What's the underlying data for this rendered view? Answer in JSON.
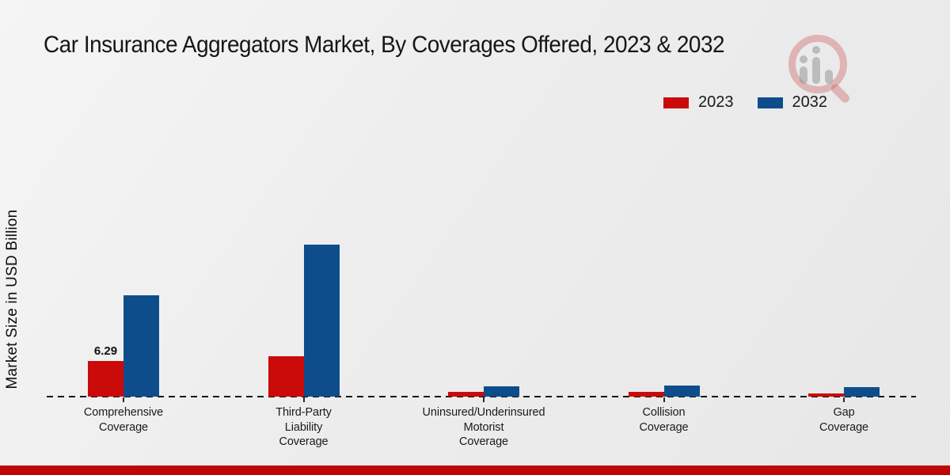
{
  "title": "Car Insurance Aggregators Market, By Coverages Offered, 2023 & 2032",
  "y_axis_label": "Market Size in USD Billion",
  "legend": {
    "items": [
      {
        "label": "2023",
        "color": "#cb0a0a"
      },
      {
        "label": "2032",
        "color": "#0e4d8c"
      }
    ]
  },
  "colors": {
    "series_2023": "#cb0a0a",
    "series_2032": "#0e4d8c",
    "footer_strip": "#c00606",
    "baseline": "#151515",
    "background": "#ededed",
    "watermark_red": "#cb5c5c",
    "watermark_gray": "#96969b"
  },
  "chart_data": {
    "type": "bar",
    "title": "Car Insurance Aggregators Market, By Coverages Offered, 2023 & 2032",
    "xlabel": "",
    "ylabel": "Market Size in USD Billion",
    "grid": false,
    "legend_position": "top-right",
    "baseline_value": 0,
    "categories": [
      {
        "name": "Comprehensive Coverage",
        "lines": [
          "Comprehensive",
          "Coverage"
        ]
      },
      {
        "name": "Third-Party Liability Coverage",
        "lines": [
          "Third-Party",
          "Liability",
          "Coverage"
        ]
      },
      {
        "name": "Uninsured/Underinsured Motorist Coverage",
        "lines": [
          "Uninsured/Underinsured",
          "Motorist",
          "Coverage"
        ]
      },
      {
        "name": "Collision Coverage",
        "lines": [
          "Collision",
          "Coverage"
        ]
      },
      {
        "name": "Gap Coverage",
        "lines": [
          "Gap",
          "Coverage"
        ]
      }
    ],
    "series": [
      {
        "name": "2023",
        "color": "#cb0a0a",
        "values": [
          6.29,
          7.1,
          0.8,
          0.9,
          0.6
        ]
      },
      {
        "name": "2032",
        "color": "#0e4d8c",
        "values": [
          17.9,
          26.8,
          1.8,
          2.0,
          1.7
        ]
      }
    ],
    "value_labels": [
      {
        "series_index": 0,
        "category_index": 0,
        "text": "6.29"
      }
    ],
    "units": "USD Billion"
  }
}
